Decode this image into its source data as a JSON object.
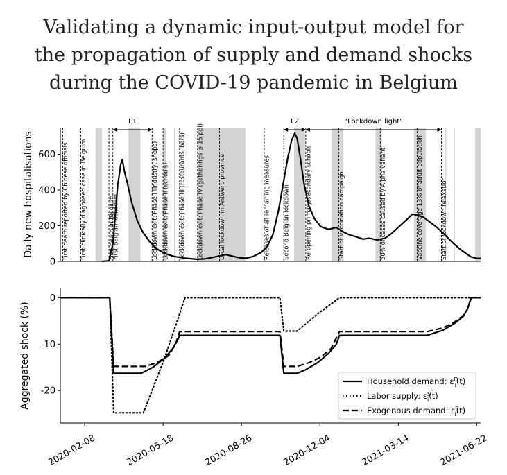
{
  "title_lines": [
    "Validating a dynamic input-output model for",
    "the propagation of supply and demand shocks",
    "during the COVID-19 pandemic in Belgium"
  ],
  "chart_data": [
    {
      "type": "line",
      "ylabel": "Daily new hospitalisations",
      "yticks": [
        0,
        200,
        400,
        600
      ],
      "ylim": [
        0,
        750
      ],
      "xlim": [
        "2020-01-08",
        "2021-06-27"
      ],
      "series": [
        {
          "color": "#000000",
          "points": [
            [
              "2020-03-01",
              0
            ],
            [
              "2020-03-10",
              3
            ],
            [
              "2020-03-15",
              100
            ],
            [
              "2020-03-18",
              250
            ],
            [
              "2020-03-21",
              420
            ],
            [
              "2020-03-25",
              545
            ],
            [
              "2020-03-27",
              570
            ],
            [
              "2020-03-30",
              500
            ],
            [
              "2020-04-03",
              430
            ],
            [
              "2020-04-08",
              330
            ],
            [
              "2020-04-15",
              230
            ],
            [
              "2020-04-22",
              165
            ],
            [
              "2020-05-01",
              110
            ],
            [
              "2020-05-10",
              70
            ],
            [
              "2020-05-20",
              45
            ],
            [
              "2020-06-01",
              28
            ],
            [
              "2020-06-15",
              18
            ],
            [
              "2020-06-30",
              12
            ],
            [
              "2020-07-10",
              14
            ],
            [
              "2020-07-20",
              22
            ],
            [
              "2020-07-30",
              32
            ],
            [
              "2020-08-06",
              38
            ],
            [
              "2020-08-14",
              30
            ],
            [
              "2020-08-24",
              20
            ],
            [
              "2020-09-01",
              18
            ],
            [
              "2020-09-10",
              28
            ],
            [
              "2020-09-20",
              50
            ],
            [
              "2020-09-28",
              85
            ],
            [
              "2020-10-05",
              150
            ],
            [
              "2020-10-12",
              280
            ],
            [
              "2020-10-18",
              430
            ],
            [
              "2020-10-24",
              580
            ],
            [
              "2020-10-29",
              680
            ],
            [
              "2020-11-02",
              718
            ],
            [
              "2020-11-05",
              690
            ],
            [
              "2020-11-09",
              580
            ],
            [
              "2020-11-14",
              430
            ],
            [
              "2020-11-20",
              310
            ],
            [
              "2020-11-27",
              240
            ],
            [
              "2020-12-05",
              195
            ],
            [
              "2020-12-15",
              180
            ],
            [
              "2020-12-25",
              190
            ],
            [
              "2021-01-03",
              165
            ],
            [
              "2021-01-10",
              150
            ],
            [
              "2021-01-18",
              140
            ],
            [
              "2021-01-28",
              125
            ],
            [
              "2021-02-05",
              130
            ],
            [
              "2021-02-15",
              120
            ],
            [
              "2021-02-25",
              130
            ],
            [
              "2021-03-05",
              155
            ],
            [
              "2021-03-15",
              195
            ],
            [
              "2021-03-25",
              235
            ],
            [
              "2021-04-01",
              265
            ],
            [
              "2021-04-08",
              258
            ],
            [
              "2021-04-15",
              248
            ],
            [
              "2021-04-22",
              225
            ],
            [
              "2021-05-01",
              195
            ],
            [
              "2021-05-10",
              160
            ],
            [
              "2021-05-20",
              115
            ],
            [
              "2021-05-30",
              75
            ],
            [
              "2021-06-08",
              45
            ],
            [
              "2021-06-15",
              25
            ],
            [
              "2021-06-22",
              17
            ],
            [
              "2021-06-27",
              17
            ]
          ]
        }
      ],
      "shaded_periods": [
        [
          "2020-02-22",
          "2020-03-01"
        ],
        [
          "2020-04-04",
          "2020-04-19"
        ],
        [
          "2020-05-18",
          "2020-05-22"
        ],
        [
          "2020-06-01",
          "2020-06-03"
        ],
        [
          "2020-07-01",
          "2020-08-31"
        ],
        [
          "2020-11-01",
          "2020-11-15"
        ],
        [
          "2020-12-19",
          "2021-01-03"
        ],
        [
          "2021-02-13",
          "2021-02-21"
        ],
        [
          "2021-04-03",
          "2021-04-18"
        ],
        [
          "2021-05-13",
          "2021-05-14"
        ],
        [
          "2021-05-24",
          "2021-05-25"
        ],
        [
          "2021-06-20",
          "2021-06-27"
        ]
      ],
      "events": [
        {
          "date": "2020-01-11",
          "label": "First death reported by Chinese officials"
        },
        {
          "date": "2020-02-03",
          "label": "First clinically diagnosed case in Belgium"
        },
        {
          "date": "2020-03-10",
          "label": "First death in Belgium"
        },
        {
          "date": "2020-03-15",
          "label": "First Belgian lockdown"
        },
        {
          "date": "2020-05-04",
          "label": "Lockdown exit: Phase I (industry, shops)"
        },
        {
          "date": "2020-05-18",
          "label": "Lockdown exit: Phase II (schools)"
        },
        {
          "date": "2020-06-08",
          "label": "Lockdown exit: Phase III (restaurants, bars)"
        },
        {
          "date": "2020-07-01",
          "label": "Lockdown exit: Phase IV (gatherings ≤ 15 ppl)"
        },
        {
          "date": "2020-07-29",
          "label": "Local lockdown in Antwerp province"
        },
        {
          "date": "2020-09-24",
          "label": "Releases of all remaining measures"
        },
        {
          "date": "2020-10-19",
          "label": "Second Belgian lockdown"
        },
        {
          "date": "2020-11-16",
          "label": "Re-opening primary/secondary schools"
        },
        {
          "date": "2020-12-28",
          "label": "Start of vaccination campaign"
        },
        {
          "date": "2021-02-19",
          "label": "50% of cases caused by Alpha variant"
        },
        {
          "date": "2021-04-07",
          "label": "Vaccine coverage 13% of adult population"
        },
        {
          "date": "2021-05-08",
          "label": "Start of lockdown relaxation"
        }
      ],
      "periods": [
        {
          "label": "L1",
          "start": "2020-03-15",
          "end": "2020-05-04"
        },
        {
          "label": "L2",
          "start": "2020-10-19",
          "end": "2020-11-16"
        },
        {
          "label": "\"Lockdown light\"",
          "start": "2020-11-16",
          "end": "2021-05-08"
        }
      ]
    },
    {
      "type": "line",
      "ylabel": "Aggregated shock (%)",
      "yticks": [
        0,
        -10,
        -20
      ],
      "ylim": [
        -27,
        2
      ],
      "xlim": [
        "2020-01-08",
        "2021-06-27"
      ],
      "xticks": [
        "2020-02-08",
        "2020-05-18",
        "2020-08-26",
        "2020-12-04",
        "2021-03-14",
        "2021-06-22"
      ],
      "legend_position": "lower-right",
      "series": [
        {
          "name": "Household demand: ε^D_i(t)",
          "style": "solid",
          "points": [
            [
              "2020-01-08",
              0
            ],
            [
              "2020-03-11",
              0
            ],
            [
              "2020-03-16",
              -16.3
            ],
            [
              "2020-04-20",
              -16.3
            ],
            [
              "2020-05-05",
              -15
            ],
            [
              "2020-05-20",
              -13
            ],
            [
              "2020-05-30",
              -11
            ],
            [
              "2020-06-06",
              -9
            ],
            [
              "2020-06-08",
              -8.1
            ],
            [
              "2020-10-14",
              -8.1
            ],
            [
              "2020-10-19",
              -16.3
            ],
            [
              "2020-11-05",
              -16.3
            ],
            [
              "2020-11-16",
              -15.5
            ],
            [
              "2020-12-01",
              -14
            ],
            [
              "2020-12-15",
              -12
            ],
            [
              "2020-12-25",
              -10
            ],
            [
              "2020-12-29",
              -8.1
            ],
            [
              "2021-04-20",
              -8.1
            ],
            [
              "2021-05-10",
              -7
            ],
            [
              "2021-05-25",
              -5.5
            ],
            [
              "2021-06-05",
              -4
            ],
            [
              "2021-06-10",
              -2.5
            ],
            [
              "2021-06-15",
              0
            ],
            [
              "2021-06-27",
              0
            ]
          ]
        },
        {
          "name": "Labor supply: ε^S_i(t)",
          "style": "dotted",
          "points": [
            [
              "2020-01-08",
              0
            ],
            [
              "2020-03-11",
              0
            ],
            [
              "2020-03-16",
              -24.8
            ],
            [
              "2020-04-23",
              -24.8
            ],
            [
              "2020-05-20",
              -13
            ],
            [
              "2020-06-15",
              0
            ],
            [
              "2020-10-14",
              0
            ],
            [
              "2020-10-19",
              -7.2
            ],
            [
              "2020-11-05",
              -7.2
            ],
            [
              "2020-12-01",
              -3.5
            ],
            [
              "2020-12-29",
              0
            ],
            [
              "2021-06-27",
              0
            ]
          ]
        },
        {
          "name": "Exogenous demand: ε^F_i(t)",
          "style": "dashed",
          "points": [
            [
              "2020-01-08",
              0
            ],
            [
              "2020-03-11",
              0
            ],
            [
              "2020-03-16",
              -14.8
            ],
            [
              "2020-04-25",
              -14.8
            ],
            [
              "2020-05-10",
              -14
            ],
            [
              "2020-05-25",
              -12.5
            ],
            [
              "2020-06-03",
              -10
            ],
            [
              "2020-06-08",
              -7.3
            ],
            [
              "2020-10-14",
              -7.3
            ],
            [
              "2020-10-19",
              -14.8
            ],
            [
              "2020-11-05",
              -14.8
            ],
            [
              "2020-11-20",
              -14
            ],
            [
              "2020-12-05",
              -12.8
            ],
            [
              "2020-12-18",
              -11
            ],
            [
              "2020-12-29",
              -7.3
            ],
            [
              "2021-04-20",
              -7.3
            ],
            [
              "2021-05-10",
              -6.5
            ],
            [
              "2021-05-25",
              -5.2
            ],
            [
              "2021-06-05",
              -3.8
            ],
            [
              "2021-06-10",
              -2.5
            ],
            [
              "2021-06-15",
              0
            ],
            [
              "2021-06-27",
              0
            ]
          ]
        }
      ]
    }
  ]
}
